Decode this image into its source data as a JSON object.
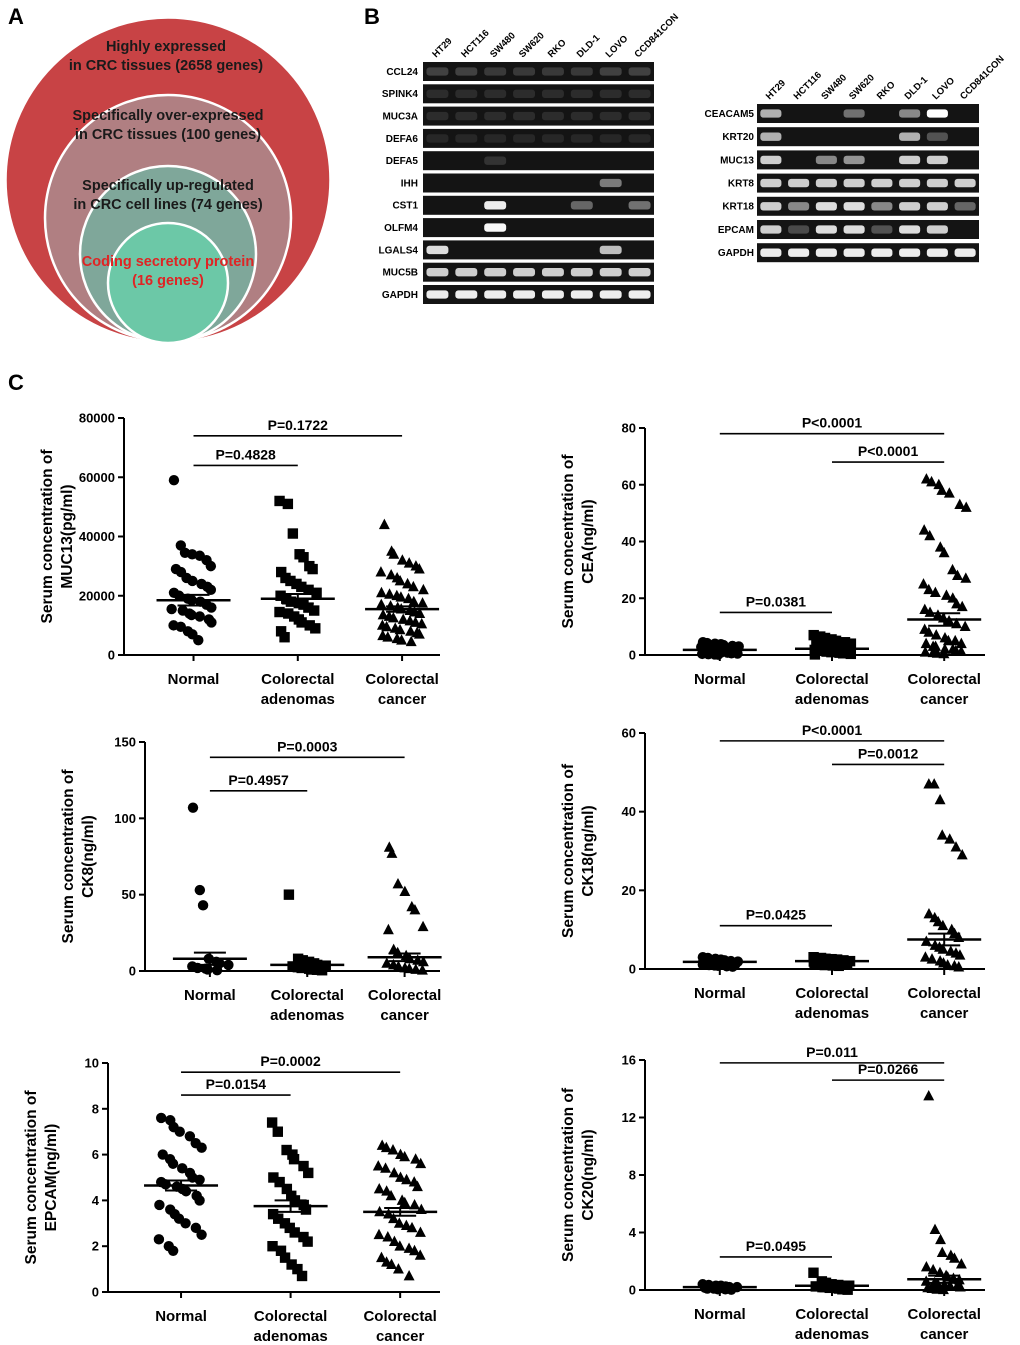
{
  "panels": {
    "a": "A",
    "b": "B",
    "c": "C"
  },
  "venn": {
    "level1_line1": "Highly expressed",
    "level1_line2": "in CRC tissues (2658 genes)",
    "level2_line1": "Specifically over-expressed",
    "level2_line2": "in CRC tissues (100 genes)",
    "level3_line1": "Specifically up-regulated",
    "level3_line2": "in CRC cell lines (74 genes)",
    "level4_line1": "Coding secretory protein",
    "level4_line2": "(16 genes)",
    "colors": {
      "outer": "#c84345",
      "level2": "#b07f82",
      "level3": "#7fa79a",
      "inner": "#6cc8a7",
      "highlight": "#e02424"
    }
  },
  "gels": {
    "lanes": [
      "HT29",
      "HCT116",
      "SW480",
      "SW620",
      "RKO",
      "DLD-1",
      "LOVO",
      "CCD841CON"
    ],
    "left": {
      "genes": [
        "CCL24",
        "SPINK4",
        "MUC3A",
        "DEFA6",
        "DEFA5",
        "IHH",
        "CST1",
        "OLFM4",
        "LGALS4",
        "MUC5B",
        "GAPDH"
      ],
      "intensities": [
        [
          0.25,
          0.25,
          0.2,
          0.2,
          0.2,
          0.2,
          0.25,
          0.25
        ],
        [
          0.1,
          0.1,
          0.1,
          0.1,
          0.1,
          0.1,
          0.1,
          0.1
        ],
        [
          0.1,
          0.1,
          0.1,
          0.1,
          0.1,
          0.1,
          0.1,
          0.1
        ],
        [
          0.05,
          0.05,
          0.05,
          0.05,
          0.05,
          0.05,
          0.05,
          0.05
        ],
        [
          0,
          0,
          0.15,
          0,
          0,
          0,
          0,
          0
        ],
        [
          0,
          0,
          0,
          0,
          0,
          0,
          0.55,
          0
        ],
        [
          0,
          0,
          0.95,
          0,
          0,
          0.45,
          0,
          0.5
        ],
        [
          0,
          0,
          0.98,
          0,
          0,
          0,
          0,
          0
        ],
        [
          0.9,
          0,
          0,
          0,
          0,
          0,
          0.8,
          0
        ],
        [
          0.85,
          0.85,
          0.85,
          0.85,
          0.85,
          0.85,
          0.85,
          0.85
        ],
        [
          0.95,
          0.95,
          0.95,
          0.95,
          0.95,
          0.95,
          0.95,
          0.95
        ]
      ]
    },
    "right": {
      "genes": [
        "CEACAM5",
        "KRT20",
        "MUC13",
        "KRT8",
        "KRT18",
        "EPCAM",
        "GAPDH"
      ],
      "intensities": [
        [
          0.75,
          0,
          0,
          0.5,
          0,
          0.6,
          1.0,
          0
        ],
        [
          0.75,
          0,
          0,
          0,
          0,
          0.75,
          0.35,
          0
        ],
        [
          0.85,
          0,
          0.6,
          0.65,
          0,
          0.85,
          0.85,
          0
        ],
        [
          0.85,
          0.85,
          0.85,
          0.85,
          0.85,
          0.85,
          0.85,
          0.85
        ],
        [
          0.85,
          0.6,
          0.9,
          0.9,
          0.6,
          0.85,
          0.85,
          0.45
        ],
        [
          0.85,
          0.3,
          0.9,
          0.9,
          0.35,
          0.9,
          0.85,
          0
        ],
        [
          0.95,
          0.95,
          0.95,
          0.95,
          0.95,
          0.95,
          0.95,
          0.95
        ]
      ]
    }
  },
  "chart_data": [
    {
      "type": "scatter",
      "ylabel_line1": "Serum concentration of",
      "ylabel_line2": "MUC13(pg/ml)",
      "ylim": [
        0,
        80000
      ],
      "yticks": [
        "0",
        "20000",
        "40000",
        "60000",
        "80000"
      ],
      "categories": [
        [
          "Normal"
        ],
        [
          "Colorectal",
          "adenomas"
        ],
        [
          "Colorectal",
          "cancer"
        ]
      ],
      "markers": [
        "circle",
        "square",
        "triangle"
      ],
      "means": [
        18500,
        19000,
        15500
      ],
      "sems": [
        1800,
        1600,
        900
      ],
      "comparisons": [
        {
          "label": "P=0.4828",
          "from": 0,
          "to": 1,
          "y": 64000
        },
        {
          "label": "P=0.1722",
          "from": 0,
          "to": 2,
          "y": 74000
        }
      ],
      "series": [
        {
          "name": "Normal",
          "values": [
            59000,
            37000,
            34500,
            34000,
            33500,
            32000,
            30000,
            29000,
            28000,
            26000,
            25000,
            24000,
            23000,
            22000,
            21000,
            20000,
            19000,
            18500,
            18000,
            17000,
            16000,
            15500,
            15000,
            14000,
            13500,
            13000,
            12000,
            11000,
            10000,
            9500,
            8000,
            7000,
            5000
          ]
        },
        {
          "name": "Colorectal adenomas",
          "values": [
            52000,
            51000,
            41000,
            34000,
            33000,
            30000,
            29000,
            28000,
            26000,
            25000,
            24000,
            23000,
            22000,
            21000,
            20000,
            19000,
            18000,
            17500,
            17000,
            16000,
            15000,
            14500,
            14000,
            13000,
            12000,
            11000,
            10000,
            9000,
            8000,
            6000
          ]
        },
        {
          "name": "Colorectal cancer",
          "values": [
            44000,
            35000,
            34000,
            32000,
            31000,
            30000,
            29000,
            28000,
            27000,
            26000,
            25000,
            24000,
            23000,
            22000,
            21000,
            20500,
            20000,
            19500,
            19000,
            18000,
            17500,
            17000,
            16500,
            16000,
            15500,
            15000,
            14500,
            14000,
            13500,
            13000,
            12500,
            12000,
            11500,
            11000,
            10500,
            10000,
            9500,
            9000,
            8500,
            8000,
            7500,
            7000,
            6500,
            6000,
            5500,
            5000,
            4500
          ]
        }
      ]
    },
    {
      "type": "scatter",
      "ylabel_line1": "Serum concentration of",
      "ylabel_line2": "CEA(ng/ml)",
      "ylim": [
        0,
        80
      ],
      "yticks": [
        "0",
        "20",
        "40",
        "60",
        "80"
      ],
      "categories": [
        [
          "Normal"
        ],
        [
          "Colorectal",
          "adenomas"
        ],
        [
          "Colorectal",
          "cancer"
        ]
      ],
      "markers": [
        "circle",
        "square",
        "triangle"
      ],
      "means": [
        1.8,
        2.2,
        12.5
      ],
      "sems": [
        0.3,
        0.3,
        2.2
      ],
      "comparisons": [
        {
          "label": "P=0.0381",
          "from": 0,
          "to": 1,
          "y": 15
        },
        {
          "label": "P<0.0001",
          "from": 1,
          "to": 2,
          "y": 68
        },
        {
          "label": "P<0.0001",
          "from": 0,
          "to": 2,
          "y": 78
        }
      ],
      "series": [
        {
          "name": "Normal",
          "values": [
            4.5,
            4.2,
            4,
            3.8,
            3.5,
            3.2,
            3,
            2.8,
            2.5,
            2.2,
            2,
            1.8,
            1.6,
            1.5,
            1.4,
            1.2,
            1,
            0.9,
            0.8,
            0.6,
            0.5,
            0.4,
            0.3,
            0.2,
            0.1
          ]
        },
        {
          "name": "Colorectal adenomas",
          "values": [
            7,
            6.5,
            6,
            5.5,
            5,
            4.5,
            4,
            3.5,
            3.2,
            3,
            2.8,
            2.5,
            2.2,
            2,
            1.8,
            1.5,
            1.2,
            1,
            0.8,
            0.6,
            0.4,
            0.2
          ]
        },
        {
          "name": "Colorectal cancer",
          "values": [
            62,
            61,
            60,
            58,
            57,
            53,
            52,
            44,
            42,
            38,
            36,
            30,
            28,
            27,
            25,
            23,
            22,
            21,
            20,
            18,
            17,
            16,
            15,
            14,
            13,
            12,
            11,
            10,
            9,
            8,
            7,
            6,
            5,
            5,
            4,
            4,
            3,
            3,
            2,
            2,
            1.5,
            1.2,
            1,
            0.8,
            0.6,
            0.4
          ]
        }
      ]
    },
    {
      "type": "scatter",
      "ylabel_line1": "Serum concentration of",
      "ylabel_line2": "CK8(ng/ml)",
      "ylim": [
        0,
        150
      ],
      "yticks": [
        "0",
        "50",
        "100",
        "150"
      ],
      "categories": [
        [
          "Normal"
        ],
        [
          "Colorectal",
          "adenomas"
        ],
        [
          "Colorectal",
          "cancer"
        ]
      ],
      "markers": [
        "circle",
        "square",
        "triangle"
      ],
      "means": [
        8,
        4,
        9
      ],
      "sems": [
        4,
        1.5,
        2.5
      ],
      "comparisons": [
        {
          "label": "P=0.4957",
          "from": 0,
          "to": 1,
          "y": 118
        },
        {
          "label": "P=0.0003",
          "from": 0,
          "to": 2,
          "y": 140
        }
      ],
      "series": [
        {
          "name": "Normal",
          "values": [
            107,
            53,
            43,
            8,
            6,
            5,
            4,
            3,
            2,
            1.5,
            1,
            0.5
          ]
        },
        {
          "name": "Colorectal adenomas",
          "values": [
            50,
            8,
            7,
            6,
            5,
            4,
            3.5,
            3,
            2.5,
            2,
            1.5,
            1,
            0.8,
            0.5
          ]
        },
        {
          "name": "Colorectal cancer",
          "values": [
            81,
            77,
            57,
            52,
            42,
            40,
            29,
            27,
            14,
            12,
            10,
            8,
            7,
            6,
            5,
            4,
            3,
            2,
            1.5,
            1,
            0.5
          ]
        }
      ]
    },
    {
      "type": "scatter",
      "ylabel_line1": "Serum concentration of",
      "ylabel_line2": "CK18(ng/ml)",
      "ylim": [
        0,
        60
      ],
      "yticks": [
        "0",
        "20",
        "40",
        "60"
      ],
      "categories": [
        [
          "Normal"
        ],
        [
          "Colorectal",
          "adenomas"
        ],
        [
          "Colorectal",
          "cancer"
        ]
      ],
      "markers": [
        "circle",
        "square",
        "triangle"
      ],
      "means": [
        1.8,
        2,
        7.5
      ],
      "sems": [
        0.2,
        0.2,
        1.5
      ],
      "comparisons": [
        {
          "label": "P=0.0425",
          "from": 0,
          "to": 1,
          "y": 11
        },
        {
          "label": "P=0.0012",
          "from": 1,
          "to": 2,
          "y": 52
        },
        {
          "label": "P<0.0001",
          "from": 0,
          "to": 2,
          "y": 58
        }
      ],
      "series": [
        {
          "name": "Normal",
          "values": [
            3,
            2.8,
            2.6,
            2.4,
            2.2,
            2,
            1.9,
            1.8,
            1.7,
            1.6,
            1.5,
            1.4,
            1.3,
            1.2,
            1.1,
            1,
            0.9,
            0.8,
            0.7,
            0.6
          ]
        },
        {
          "name": "Colorectal adenomas",
          "values": [
            3,
            2.8,
            2.6,
            2.5,
            2.4,
            2.2,
            2,
            1.9,
            1.8,
            1.7,
            1.6,
            1.5,
            1.4,
            1.3,
            1.2,
            1.1,
            1,
            0.9,
            0.8
          ]
        },
        {
          "name": "Colorectal cancer",
          "values": [
            47,
            47,
            43,
            34,
            33,
            31,
            29,
            14,
            13,
            12,
            11,
            10,
            9,
            8,
            7,
            6,
            5.5,
            5,
            4.5,
            4,
            3.5,
            3,
            2.5,
            2,
            1.5,
            1,
            0.8,
            0.5
          ]
        }
      ]
    },
    {
      "type": "scatter",
      "ylabel_line1": "Serum concentration of",
      "ylabel_line2": "EPCAM(ng/ml)",
      "ylim": [
        0,
        10
      ],
      "yticks": [
        "0",
        "2",
        "4",
        "6",
        "8",
        "10"
      ],
      "categories": [
        [
          "Normal"
        ],
        [
          "Colorectal",
          "adenomas"
        ],
        [
          "Colorectal",
          "cancer"
        ]
      ],
      "markers": [
        "circle",
        "square",
        "triangle"
      ],
      "means": [
        4.65,
        3.75,
        3.5
      ],
      "sems": [
        0.22,
        0.25,
        0.17
      ],
      "comparisons": [
        {
          "label": "P=0.0154",
          "from": 0,
          "to": 1,
          "y": 8.6
        },
        {
          "label": "P=0.0002",
          "from": 0,
          "to": 2,
          "y": 9.6
        }
      ],
      "series": [
        {
          "name": "Normal",
          "values": [
            7.6,
            7.5,
            7.2,
            7,
            6.8,
            6.5,
            6.3,
            6,
            5.8,
            5.6,
            5.4,
            5.2,
            5,
            4.9,
            4.8,
            4.7,
            4.6,
            4.5,
            4.4,
            4.2,
            4,
            3.8,
            3.6,
            3.4,
            3.2,
            3,
            2.8,
            2.5,
            2.3,
            2,
            1.8
          ]
        },
        {
          "name": "Colorectal adenomas",
          "values": [
            7.4,
            7,
            6.2,
            6,
            5.8,
            5.5,
            5.2,
            5,
            4.8,
            4.5,
            4.2,
            4,
            3.8,
            3.6,
            3.4,
            3.2,
            3,
            2.8,
            2.6,
            2.4,
            2.2,
            2,
            1.8,
            1.5,
            1.2,
            1,
            0.7
          ]
        },
        {
          "name": "Colorectal cancer",
          "values": [
            6.4,
            6.3,
            6.2,
            6,
            5.9,
            5.8,
            5.6,
            5.5,
            5.4,
            5.2,
            5,
            4.9,
            4.8,
            4.6,
            4.5,
            4.4,
            4.2,
            4,
            3.9,
            3.8,
            3.6,
            3.5,
            3.4,
            3.2,
            3,
            2.9,
            2.8,
            2.6,
            2.5,
            2.4,
            2.2,
            2,
            1.9,
            1.8,
            1.6,
            1.5,
            1.3,
            1.2,
            1,
            0.7
          ]
        }
      ]
    },
    {
      "type": "scatter",
      "ylabel_line1": "Serum concentration of",
      "ylabel_line2": "CK20(ng/ml)",
      "ylim": [
        0,
        16
      ],
      "yticks": [
        "0",
        "4",
        "8",
        "12",
        "16"
      ],
      "categories": [
        [
          "Normal"
        ],
        [
          "Colorectal",
          "adenomas"
        ],
        [
          "Colorectal",
          "cancer"
        ]
      ],
      "markers": [
        "circle",
        "square",
        "triangle"
      ],
      "means": [
        0.2,
        0.3,
        0.75
      ],
      "sems": [
        0.05,
        0.06,
        0.25
      ],
      "comparisons": [
        {
          "label": "P=0.0495",
          "from": 0,
          "to": 1,
          "y": 2.3
        },
        {
          "label": "P=0.0266",
          "from": 1,
          "to": 2,
          "y": 14.6
        },
        {
          "label": "P=0.011",
          "from": 0,
          "to": 2,
          "y": 15.8
        }
      ],
      "series": [
        {
          "name": "Normal",
          "values": [
            0.4,
            0.35,
            0.3,
            0.3,
            0.25,
            0.2,
            0.2,
            0.15,
            0.1,
            0.1,
            0.05,
            0.05,
            0.02
          ]
        },
        {
          "name": "Colorectal adenomas",
          "values": [
            1.2,
            0.6,
            0.5,
            0.4,
            0.35,
            0.3,
            0.3,
            0.25,
            0.2,
            0.2,
            0.15,
            0.1,
            0.05,
            0.02
          ]
        },
        {
          "name": "Colorectal cancer",
          "values": [
            13.5,
            4.2,
            3.5,
            2.6,
            2.4,
            2.2,
            1.8,
            1.6,
            1.4,
            1.2,
            1,
            0.9,
            0.8,
            0.7,
            0.6,
            0.5,
            0.4,
            0.35,
            0.3,
            0.25,
            0.2,
            0.15,
            0.1,
            0.05,
            0.02
          ]
        }
      ]
    }
  ]
}
